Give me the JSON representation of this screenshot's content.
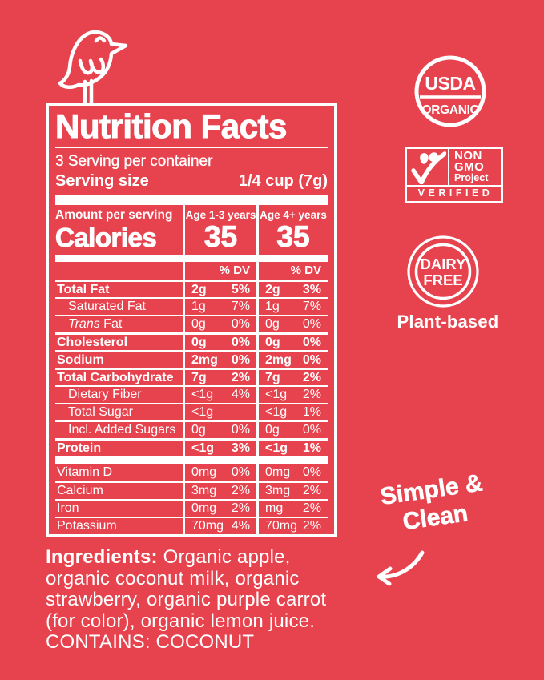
{
  "page": {
    "background": "#e7434e",
    "foreground": "#ffffff"
  },
  "badges": {
    "usda": {
      "top": "USDA",
      "bottom": "ORGANIC"
    },
    "non_gmo": {
      "line1": "NON",
      "line2": "GMO",
      "line3": "Project",
      "footer": "VERIFIED"
    },
    "dairy_free": {
      "line1": "DAIRY",
      "line2": "FREE",
      "caption": "Plant-based"
    }
  },
  "note": {
    "line1": "Simple &",
    "line2": "Clean"
  },
  "nutrition_facts": {
    "title": "Nutrition Facts",
    "servings_per_container": "3 Serving per container",
    "serving_size_label": "Serving size",
    "serving_size_value": "1/4 cup (7g)",
    "amount_per_serving_label": "Amount per serving",
    "calories_label": "Calories",
    "columns": [
      {
        "header": "Age 1-3 years",
        "calories": "35"
      },
      {
        "header": "Age 4+ years",
        "calories": "35"
      }
    ],
    "dv_header": "% DV",
    "nutrients": [
      {
        "label": "Total Fat",
        "major": true,
        "indent": false,
        "c1": "2g",
        "dv1": "5%",
        "c2": "2g",
        "dv2": "3%"
      },
      {
        "label": "Saturated Fat",
        "major": false,
        "indent": true,
        "c1": "1g",
        "dv1": "7%",
        "c2": "1g",
        "dv2": "7%"
      },
      {
        "label": "Fat",
        "italic_prefix": "Trans",
        "major": false,
        "indent": true,
        "c1": "0g",
        "dv1": "0%",
        "c2": "0g",
        "dv2": "0%"
      },
      {
        "label": "Cholesterol",
        "major": true,
        "indent": false,
        "c1": "0g",
        "dv1": "0%",
        "c2": "0g",
        "dv2": "0%"
      },
      {
        "label": "Sodium",
        "major": true,
        "indent": false,
        "c1": "2mg",
        "dv1": "0%",
        "c2": "2mg",
        "dv2": "0%"
      },
      {
        "label": "Total Carbohydrate",
        "major": true,
        "indent": false,
        "c1": "7g",
        "dv1": "2%",
        "c2": "7g",
        "dv2": "2%"
      },
      {
        "label": "Dietary Fiber",
        "major": false,
        "indent": true,
        "c1": "<1g",
        "dv1": "4%",
        "c2": "<1g",
        "dv2": "2%"
      },
      {
        "label": "Total Sugar",
        "major": false,
        "indent": true,
        "c1": "<1g",
        "dv1": "",
        "c2": "<1g",
        "dv2": "1%"
      },
      {
        "label": "Incl. Added Sugars",
        "major": false,
        "indent": true,
        "c1": "0g",
        "dv1": "0%",
        "c2": "0g",
        "dv2": "0%"
      },
      {
        "label": "Protein",
        "major": true,
        "indent": false,
        "c1": "<1g",
        "dv1": "3%",
        "c2": "<1g",
        "dv2": "1%"
      }
    ],
    "minerals": [
      {
        "label": "Vitamin D",
        "c1": "0mg",
        "dv1": "0%",
        "c2": "0mg",
        "dv2": "0%"
      },
      {
        "label": "Calcium",
        "c1": "3mg",
        "dv1": "2%",
        "c2": "3mg",
        "dv2": "2%"
      },
      {
        "label": "Iron",
        "c1": "0mg",
        "dv1": "2%",
        "c2": "mg",
        "dv2": "2%"
      },
      {
        "label": "Potassium",
        "c1": "70mg",
        "dv1": "4%",
        "c2": "70mg",
        "dv2": "2%"
      }
    ]
  },
  "ingredients": {
    "label": "Ingredients:",
    "line1": " Organic apple,",
    "line2": "organic coconut milk, organic",
    "line3": "strawberry, organic purple carrot",
    "line4": "(for color), organic lemon juice.",
    "line5": "CONTAINS: COCONUT"
  }
}
